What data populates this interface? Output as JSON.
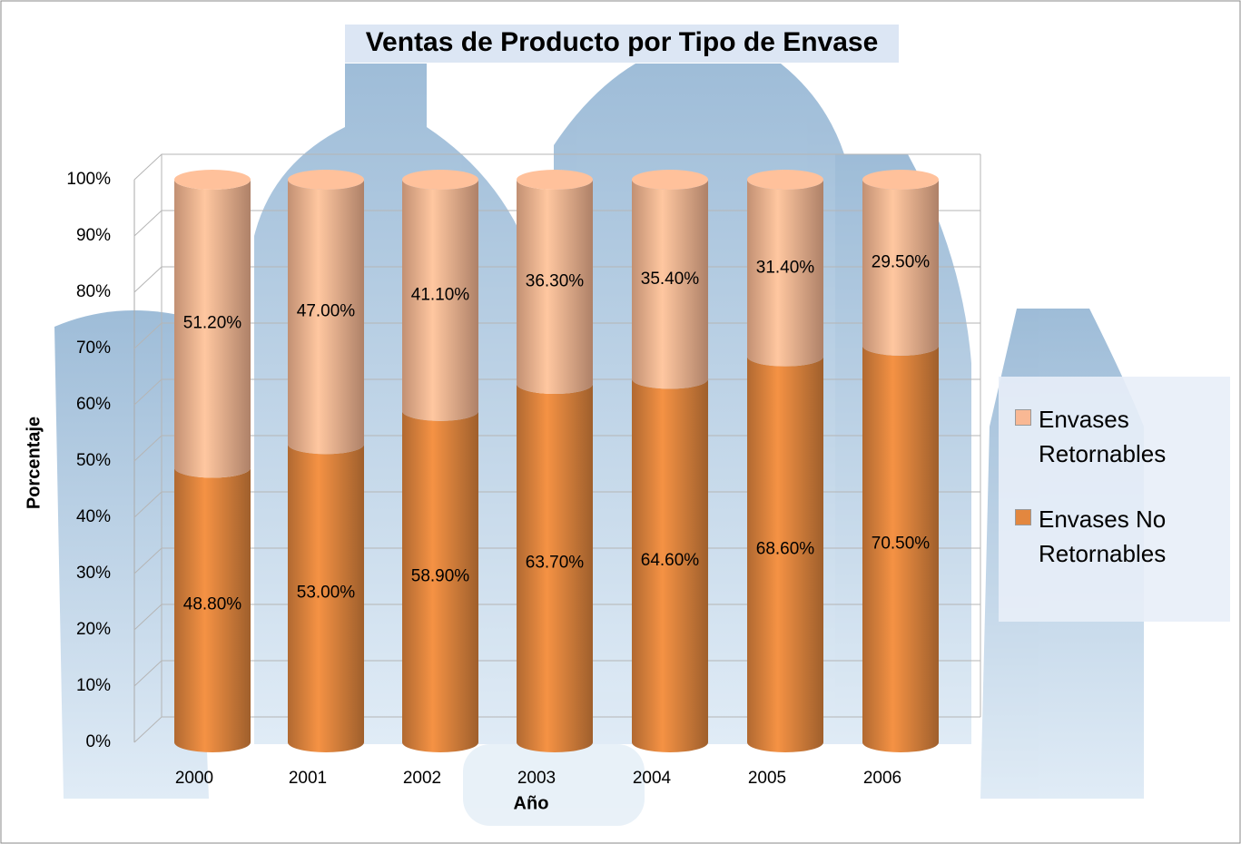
{
  "chart_data": {
    "type": "stacked_cylinder_bar",
    "title": "Ventas de Producto por Tipo de Envase",
    "x_label": "Año",
    "y_label": "Porcentaje",
    "categories": [
      "2000",
      "2001",
      "2002",
      "2003",
      "2004",
      "2005",
      "2006"
    ],
    "series": [
      {
        "name": "Envases No Retornables",
        "color": "#e3873f",
        "values": [
          48.8,
          53.0,
          58.9,
          63.7,
          64.6,
          68.6,
          70.5
        ],
        "value_labels": [
          "48.80%",
          "53.00%",
          "58.90%",
          "63.70%",
          "64.60%",
          "68.60%",
          "70.50%"
        ]
      },
      {
        "name": "Envases Retornables",
        "color": "#f9b894",
        "values": [
          51.2,
          47.0,
          41.1,
          36.3,
          35.4,
          31.4,
          29.5
        ],
        "value_labels": [
          "51.20%",
          "47.00%",
          "41.10%",
          "36.30%",
          "35.40%",
          "31.40%",
          "29.50%"
        ]
      }
    ],
    "ylim": [
      0,
      100
    ],
    "yticks": [
      {
        "value": 0,
        "label": "0%"
      },
      {
        "value": 10,
        "label": "10%"
      },
      {
        "value": 20,
        "label": "20%"
      },
      {
        "value": 30,
        "label": "30%"
      },
      {
        "value": 40,
        "label": "40%"
      },
      {
        "value": 50,
        "label": "50%"
      },
      {
        "value": 60,
        "label": "60%"
      },
      {
        "value": 70,
        "label": "70%"
      },
      {
        "value": 80,
        "label": "80%"
      },
      {
        "value": 90,
        "label": "90%"
      },
      {
        "value": 100,
        "label": "100%"
      }
    ],
    "grid": true,
    "legend": "right"
  }
}
